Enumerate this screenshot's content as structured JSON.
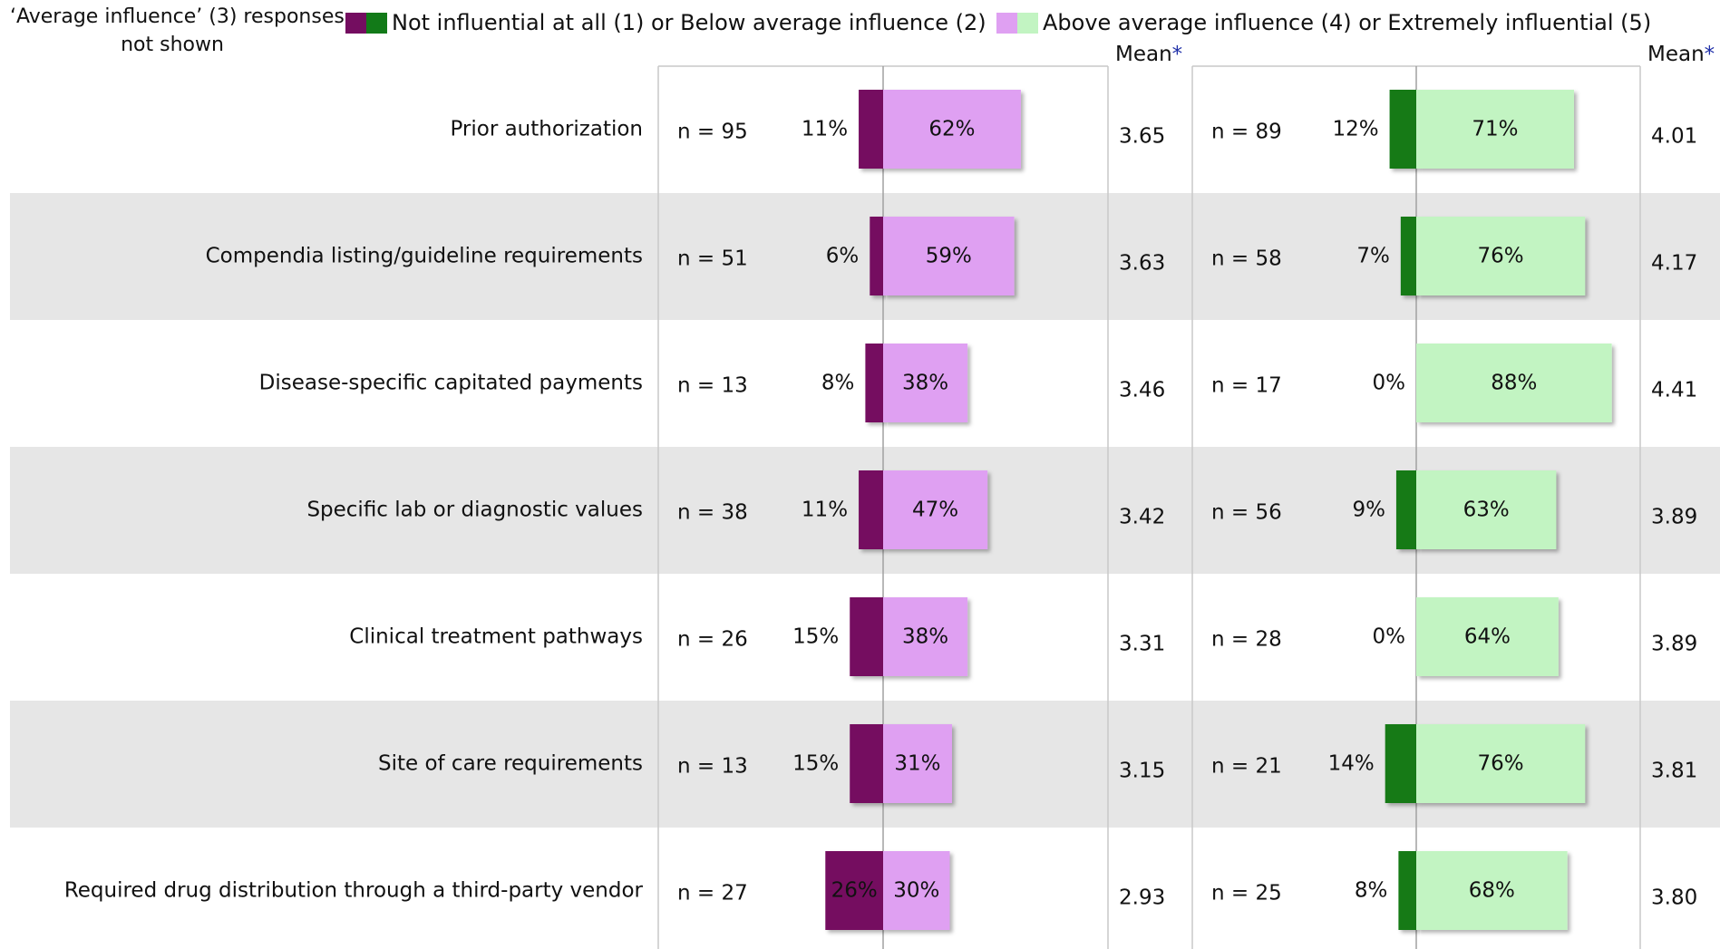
{
  "chart_data": {
    "type": "diverging_bar",
    "note": [
      "‘Average influence’ (3) responses",
      "not shown"
    ],
    "legend": [
      "Not influential at all (1) or Below average influence (2)",
      "Above average influence (4) or Extremely influential (5)"
    ],
    "mean_label": "Mean",
    "mean_marker": "*",
    "categories": [
      "Prior authorization",
      "Compendia listing/guideline requirements",
      "Disease-specific capitated payments",
      "Specific lab or diagnostic values",
      "Clinical treatment pathways",
      "Site of care requirements",
      "Required drug distribution through a third-party vendor"
    ],
    "panels": [
      {
        "n": {
          "values": [
            95,
            51,
            13,
            38,
            26,
            13,
            27
          ],
          "value_labels": [
            "n = 95",
            "n = 51",
            "n = 13",
            "n = 38",
            "n = 26",
            "n = 13",
            "n = 27"
          ]
        },
        "negative": {
          "color": "#740d60",
          "values": [
            11,
            6,
            8,
            11,
            15,
            15,
            26
          ],
          "value_labels": [
            "11%",
            "6%",
            "8%",
            "11%",
            "15%",
            "15%",
            "26%"
          ]
        },
        "positive": {
          "color": "#dfa0f2",
          "values": [
            62,
            59,
            38,
            47,
            38,
            31,
            30
          ],
          "value_labels": [
            "62%",
            "59%",
            "38%",
            "47%",
            "38%",
            "31%",
            "30%"
          ]
        },
        "mean": {
          "values": [
            3.65,
            3.63,
            3.46,
            3.42,
            3.31,
            3.15,
            2.93
          ],
          "value_labels": [
            "3.65",
            "3.63",
            "3.46",
            "3.42",
            "3.31",
            "3.15",
            "2.93"
          ]
        }
      },
      {
        "n": {
          "values": [
            89,
            58,
            17,
            56,
            28,
            21,
            25
          ],
          "value_labels": [
            "n = 89",
            "n = 58",
            "n = 17",
            "n = 56",
            "n = 28",
            "n = 21",
            "n = 25"
          ]
        },
        "negative": {
          "color": "#127a18",
          "values": [
            12,
            7,
            0,
            9,
            0,
            14,
            8
          ],
          "value_labels": [
            "12%",
            "7%",
            "0%",
            "9%",
            "0%",
            "14%",
            "8%"
          ]
        },
        "positive": {
          "color": "#c2f4c2",
          "values": [
            71,
            76,
            88,
            63,
            64,
            76,
            68
          ],
          "value_labels": [
            "71%",
            "76%",
            "88%",
            "63%",
            "64%",
            "76%",
            "68%"
          ]
        },
        "mean": {
          "values": [
            4.01,
            4.17,
            4.41,
            3.89,
            3.89,
            3.81,
            3.8
          ],
          "value_labels": [
            "4.01",
            "4.17",
            "4.41",
            "3.89",
            "3.89",
            "3.81",
            "3.80"
          ]
        }
      }
    ]
  }
}
